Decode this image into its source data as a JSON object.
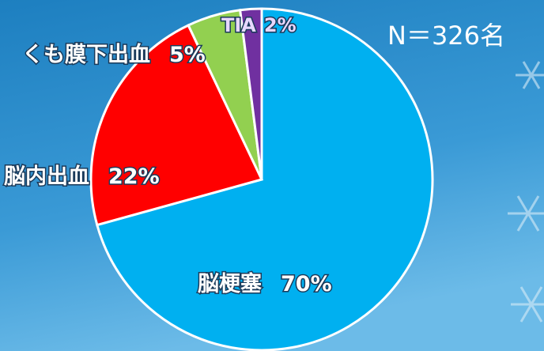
{
  "chart_data": {
    "type": "pie",
    "categories": [
      "脳梗塞",
      "脳内出血",
      "くも膜下出血",
      "TIA"
    ],
    "values": [
      70,
      22,
      5,
      2
    ],
    "value_labels": [
      "70%",
      "22%",
      "5%",
      "2%"
    ],
    "colors": [
      "#00b0f0",
      "#ff0000",
      "#92d050",
      "#7030a0"
    ],
    "annotation": "N＝326名"
  }
}
